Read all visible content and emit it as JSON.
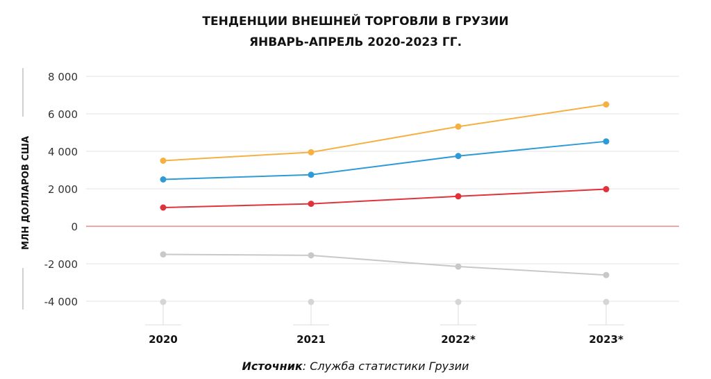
{
  "chart_data": {
    "type": "line",
    "title": "ТЕНДЕНЦИИ ВНЕШНЕЙ ТОРГОВЛИ В ГРУЗИИ",
    "subtitle": "ЯНВАРЬ-АПРЕЛЬ 2020-2023 ГГ.",
    "xlabel": "",
    "ylabel": "МЛН ДОЛЛАРОВ США",
    "categories": [
      "2020",
      "2021",
      "2022*",
      "2023*"
    ],
    "y_ticks": [
      "8 000",
      "6 000",
      "4 000",
      "2 000",
      "0",
      "-2 000",
      "-4 000"
    ],
    "ylim": [
      -4000,
      8000
    ],
    "grid": true,
    "legend": "none",
    "series": [
      {
        "color": "#f5b041",
        "values": [
          3500,
          3950,
          5320,
          6500
        ]
      },
      {
        "color": "#2e9bd6",
        "values": [
          2500,
          2750,
          3750,
          4530
        ]
      },
      {
        "color": "#e0323a",
        "values": [
          1000,
          1200,
          1600,
          1980
        ]
      },
      {
        "color": "#c8c8c8",
        "values": [
          -1500,
          -1550,
          -2150,
          -2600
        ]
      }
    ],
    "zero_line_color": "#e57373",
    "axis_marker_color": "#d0d0d0"
  },
  "source": {
    "label": "Источник",
    "text": ": Служба статистики Грузии"
  }
}
